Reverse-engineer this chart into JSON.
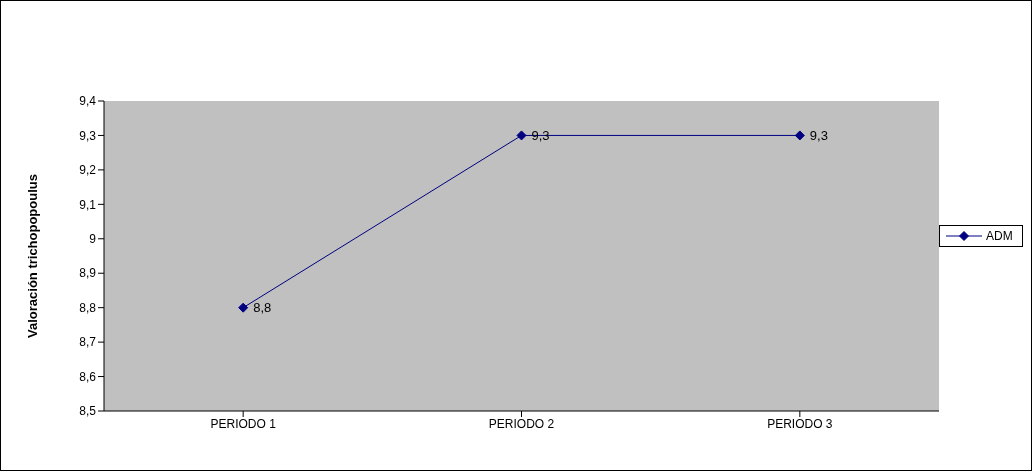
{
  "chart_data": {
    "type": "line",
    "ylabel": "Valoración trichopopoulus",
    "categories": [
      "PERIODO 1",
      "PERIODO 2",
      "PERIODO 3"
    ],
    "series": [
      {
        "name": "ADM",
        "color": "#000080",
        "values": [
          8.8,
          9.3,
          9.3
        ],
        "value_labels": [
          "8,8",
          "9,3",
          "9,3"
        ]
      }
    ],
    "ylim": [
      8.5,
      9.4
    ],
    "yticks": [
      {
        "value": 8.5,
        "label": "8,5"
      },
      {
        "value": 8.6,
        "label": "8,6"
      },
      {
        "value": 8.7,
        "label": "8,7"
      },
      {
        "value": 8.8,
        "label": "8,8"
      },
      {
        "value": 8.9,
        "label": "8,9"
      },
      9,
      {
        "value": 9.1,
        "label": "9,1"
      },
      {
        "value": 9.2,
        "label": "9,2"
      },
      {
        "value": 9.3,
        "label": "9,3"
      },
      {
        "value": 9.4,
        "label": "9,4"
      }
    ],
    "grid": false,
    "legend": "right",
    "marker": "diamond",
    "line_style": "solid"
  }
}
